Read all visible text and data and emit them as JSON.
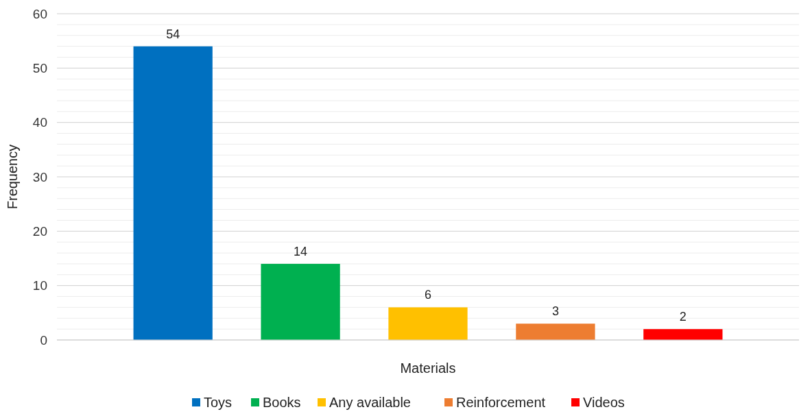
{
  "chart_data": {
    "type": "bar",
    "xlabel": "Materials",
    "ylabel": "Frequency",
    "categories": [
      null
    ],
    "series": [
      {
        "name": "Toys",
        "color": "#0070c0",
        "values": [
          54
        ]
      },
      {
        "name": "Books",
        "color": "#00b050",
        "values": [
          14
        ]
      },
      {
        "name": "Any available",
        "color": "#ffc000",
        "values": [
          6
        ]
      },
      {
        "name": "Reinforcement",
        "color": "#ed7d31",
        "values": [
          3
        ]
      },
      {
        "name": "Videos",
        "color": "#ff0000",
        "values": [
          2
        ]
      }
    ],
    "ylim": [
      0,
      60
    ],
    "yticks": [
      0,
      {
        "value": 2,
        "label": null
      },
      {
        "value": 4,
        "label": null
      },
      {
        "value": 6,
        "label": null
      },
      {
        "value": 8,
        "label": null
      },
      10,
      {
        "value": 12,
        "label": null
      },
      {
        "value": 14,
        "label": null
      },
      {
        "value": 16,
        "label": null
      },
      {
        "value": 18,
        "label": null
      },
      20,
      {
        "value": 22,
        "label": null
      },
      {
        "value": 24,
        "label": null
      },
      {
        "value": 26,
        "label": null
      },
      {
        "value": 28,
        "label": null
      },
      30,
      {
        "value": 32,
        "label": null
      },
      {
        "value": 34,
        "label": null
      },
      {
        "value": 36,
        "label": null
      },
      {
        "value": 38,
        "label": null
      },
      40,
      {
        "value": 42,
        "label": null
      },
      {
        "value": 44,
        "label": null
      },
      {
        "value": 46,
        "label": null
      },
      {
        "value": 48,
        "label": null
      },
      50,
      {
        "value": 52,
        "label": null
      },
      {
        "value": 54,
        "label": null
      },
      {
        "value": 56,
        "label": null
      },
      {
        "value": 58,
        "label": null
      },
      60
    ],
    "grid": true,
    "data_labels": true,
    "legend": "bottom"
  }
}
